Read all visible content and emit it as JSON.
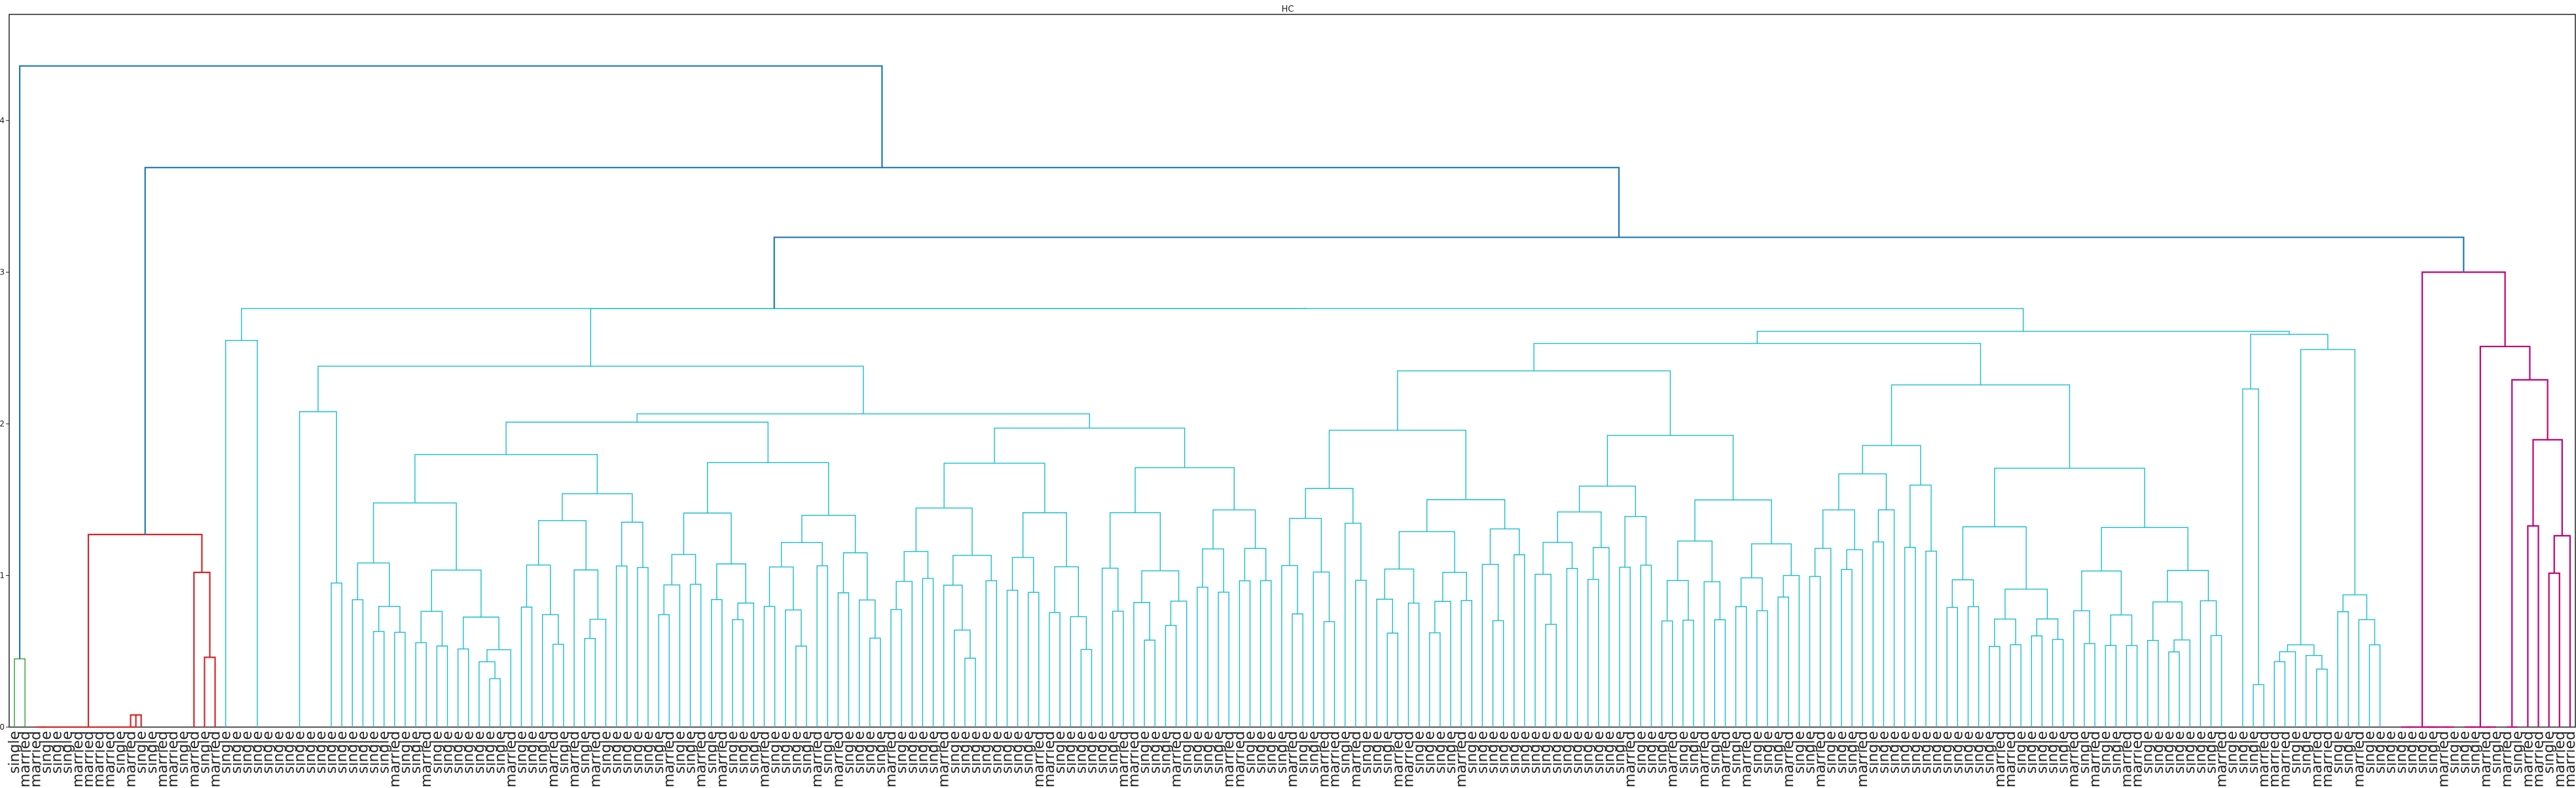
{
  "chart_data": {
    "type": "dendrogram",
    "title": "HC",
    "xlabel": "",
    "ylabel": "",
    "ylim": [
      0,
      4.7
    ],
    "yticks": [
      0,
      1,
      2,
      3,
      4
    ],
    "grid": false,
    "leaf_count": 243,
    "leaf_labels": [
      "single",
      "married",
      "married",
      "single",
      "single",
      "single",
      "married",
      "married",
      "married",
      "married",
      "single",
      "married",
      "single",
      "single",
      "married",
      "married",
      "single",
      "married",
      "single",
      "married",
      "single",
      "single",
      "single",
      "single",
      "single",
      "single",
      "single",
      "single",
      "single",
      "single",
      "single",
      "single",
      "single",
      "single",
      "single",
      "single",
      "married",
      "single",
      "single",
      "married",
      "single",
      "single",
      "single",
      "single",
      "single",
      "single",
      "single",
      "married",
      "single",
      "single",
      "single",
      "married",
      "single",
      "married",
      "single",
      "married",
      "single",
      "single",
      "single",
      "single",
      "single",
      "single",
      "married",
      "single",
      "single",
      "married",
      "single",
      "married",
      "single",
      "single",
      "single",
      "married",
      "single",
      "single",
      "single",
      "single",
      "married",
      "single",
      "married",
      "single",
      "single",
      "single",
      "single",
      "married",
      "single",
      "single",
      "single",
      "single",
      "married",
      "single",
      "single",
      "single",
      "single",
      "single",
      "single",
      "single",
      "single",
      "married",
      "married",
      "single",
      "single",
      "single",
      "single",
      "single",
      "single",
      "married",
      "married",
      "single",
      "single",
      "single",
      "married",
      "single",
      "single",
      "single",
      "single",
      "married",
      "married",
      "single",
      "single",
      "single",
      "single",
      "married",
      "single",
      "single",
      "married",
      "married",
      "single",
      "married",
      "single",
      "single",
      "single",
      "married",
      "married",
      "single",
      "single",
      "single",
      "single",
      "married",
      "single",
      "single",
      "single",
      "single",
      "single",
      "single",
      "single",
      "single",
      "single",
      "single",
      "single",
      "single",
      "single",
      "single",
      "single",
      "married",
      "single",
      "single",
      "single",
      "married",
      "single",
      "single",
      "married",
      "single",
      "married",
      "single",
      "married",
      "single",
      "single",
      "single",
      "married",
      "single",
      "single",
      "married",
      "single",
      "single",
      "single",
      "married",
      "single",
      "single",
      "single",
      "single",
      "single",
      "single",
      "single",
      "single",
      "single",
      "single",
      "single",
      "single",
      "married",
      "married",
      "single",
      "single",
      "single",
      "single",
      "single",
      "married",
      "single",
      "married",
      "single",
      "single",
      "married",
      "married",
      "single",
      "single",
      "single",
      "single",
      "single",
      "single",
      "single",
      "married",
      "single",
      "single",
      "single",
      "married",
      "married",
      "married",
      "single",
      "single",
      "married",
      "married",
      "single",
      "single",
      "married",
      "single",
      "single",
      "single",
      "single",
      "single",
      "single",
      "single",
      "married",
      "single",
      "single",
      "single",
      "married",
      "single",
      "married",
      "single",
      "married",
      "married",
      "single",
      "married",
      "married"
    ],
    "link_colors": {
      "root": "#1f77b4",
      "green_cluster": "#2ca02c",
      "red_cluster": "#d62728",
      "cyan_cluster": "#17becf",
      "magenta_cluster": "#c20078"
    }
  }
}
